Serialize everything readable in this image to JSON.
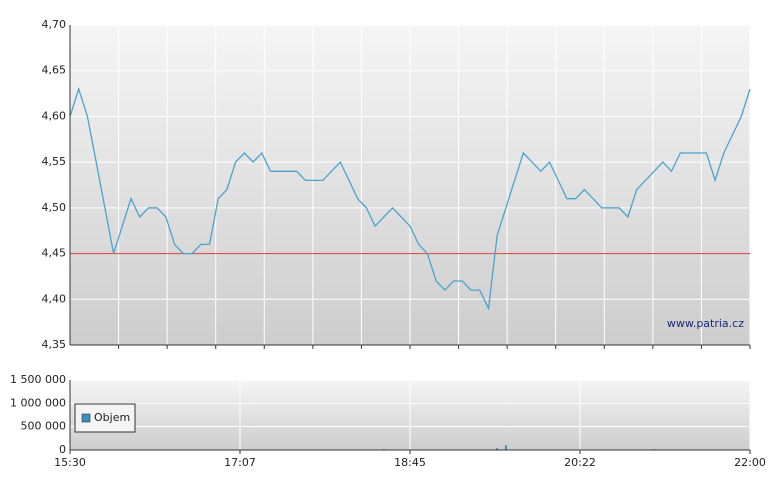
{
  "chart_data": [
    {
      "type": "line",
      "watermark": "www.patria.cz",
      "xlim": [
        930,
        1320
      ],
      "x_grid_lines": 14,
      "ylim": [
        4.35,
        4.7
      ],
      "yticks": [
        {
          "value": 4.35,
          "label": "4,35"
        },
        {
          "value": 4.4,
          "label": "4,40"
        },
        {
          "value": 4.45,
          "label": "4,45"
        },
        {
          "value": 4.5,
          "label": "4,50"
        },
        {
          "value": 4.55,
          "label": "4,55"
        },
        {
          "value": 4.6,
          "label": "4,60"
        },
        {
          "value": 4.65,
          "label": "4,65"
        },
        {
          "value": 4.7,
          "label": "4,70"
        }
      ],
      "grid": true,
      "reference_line": {
        "value": 4.45,
        "color": "#e05050"
      },
      "x": [
        930,
        935,
        940,
        945,
        950,
        955,
        960,
        965,
        970,
        975,
        980,
        985,
        990,
        995,
        1000,
        1005,
        1010,
        1015,
        1020,
        1025,
        1030,
        1035,
        1040,
        1045,
        1050,
        1055,
        1060,
        1065,
        1070,
        1075,
        1080,
        1085,
        1090,
        1095,
        1100,
        1105,
        1110,
        1115,
        1120,
        1125,
        1130,
        1135,
        1140,
        1145,
        1150,
        1155,
        1160,
        1165,
        1170,
        1175,
        1180,
        1185,
        1190,
        1195,
        1200,
        1205,
        1210,
        1215,
        1220,
        1225,
        1230,
        1235,
        1240,
        1245,
        1250,
        1255,
        1260,
        1265,
        1270,
        1275,
        1280,
        1285,
        1290,
        1295,
        1300,
        1305,
        1310,
        1315,
        1320
      ],
      "series": [
        {
          "color": "#4aa3cf",
          "values": [
            4.6,
            4.63,
            4.6,
            4.55,
            4.5,
            4.45,
            4.48,
            4.51,
            4.49,
            4.5,
            4.5,
            4.49,
            4.46,
            4.45,
            4.45,
            4.46,
            4.46,
            4.51,
            4.52,
            4.55,
            4.56,
            4.55,
            4.56,
            4.54,
            4.54,
            4.54,
            4.54,
            4.53,
            4.53,
            4.53,
            4.54,
            4.55,
            4.53,
            4.51,
            4.5,
            4.48,
            4.49,
            4.5,
            4.49,
            4.48,
            4.46,
            4.45,
            4.42,
            4.41,
            4.42,
            4.42,
            4.41,
            4.41,
            4.39,
            4.47,
            4.5,
            4.53,
            4.56,
            4.55,
            4.54,
            4.55,
            4.53,
            4.51,
            4.51,
            4.52,
            4.51,
            4.5,
            4.5,
            4.5,
            4.49,
            4.52,
            4.53,
            4.54,
            4.55,
            4.54,
            4.56,
            4.56,
            4.56,
            4.56,
            4.53,
            4.56,
            4.58,
            4.6,
            4.63
          ]
        }
      ]
    },
    {
      "type": "bar",
      "xlim": [
        930,
        1320
      ],
      "xticks": [
        {
          "value": 930,
          "label": "15:30"
        },
        {
          "value": 1027.5,
          "label": "17:07"
        },
        {
          "value": 1125,
          "label": "18:45"
        },
        {
          "value": 1222.5,
          "label": "20:22"
        },
        {
          "value": 1320,
          "label": "22:00"
        }
      ],
      "ylim": [
        0,
        1500000
      ],
      "yticks": [
        0,
        {
          "value": 500000,
          "label": "500 000"
        },
        {
          "value": 1000000,
          "label": "1 000 000"
        },
        {
          "value": 1500000,
          "label": "1 500 000"
        }
      ],
      "grid": true,
      "legend": "upper left",
      "x": [
        1110,
        1175,
        1180,
        1265
      ],
      "series": [
        {
          "name": "Objem",
          "color": "#3a8fc4",
          "values": [
            20000,
            40000,
            100000,
            20000
          ]
        }
      ]
    }
  ]
}
